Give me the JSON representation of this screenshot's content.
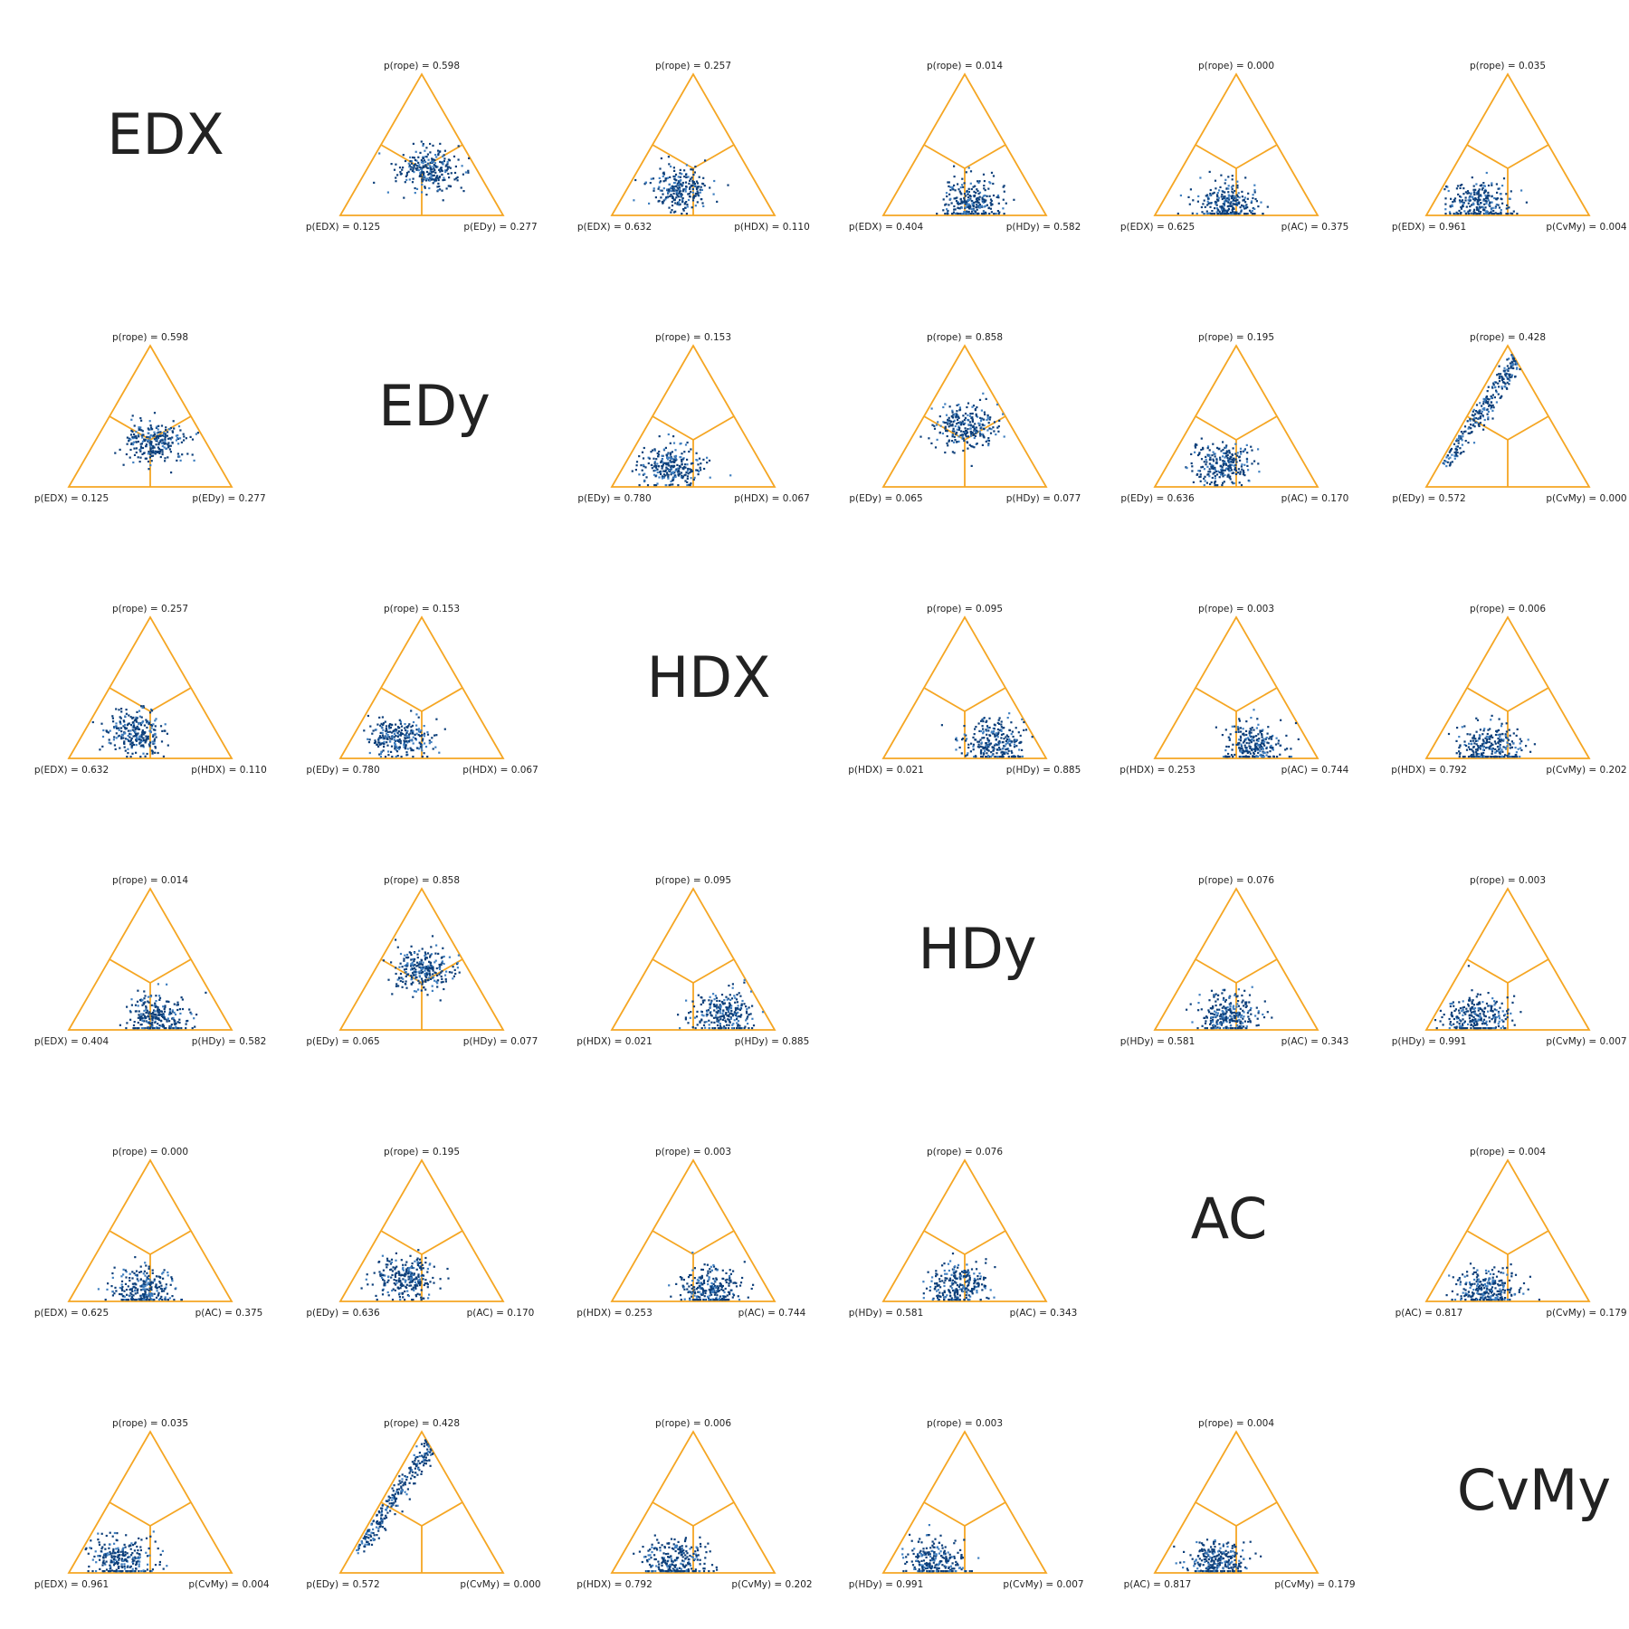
{
  "chart_data": {
    "type": "scatter",
    "subtype": "ternary-grid",
    "methods": [
      "EDX",
      "EDy",
      "HDX",
      "HDy",
      "AC",
      "CvMy"
    ],
    "colors": {
      "triangle": "#f5a623",
      "points": "#0d3f7a",
      "points_light": "#3f7fc0"
    },
    "panels": [
      {
        "row": 0,
        "col": 1,
        "top": "p(rope) = 0.598",
        "left": "p(EDX) = 0.125",
        "right": "p(EDy) = 0.277",
        "rope": 0.598,
        "pleft": 0.125,
        "pright": 0.277
      },
      {
        "row": 0,
        "col": 2,
        "top": "p(rope) = 0.257",
        "left": "p(EDX) = 0.632",
        "right": "p(HDX) = 0.110",
        "rope": 0.257,
        "pleft": 0.632,
        "pright": 0.11
      },
      {
        "row": 0,
        "col": 3,
        "top": "p(rope) = 0.014",
        "left": "p(EDX) = 0.404",
        "right": "p(HDy) = 0.582",
        "rope": 0.014,
        "pleft": 0.404,
        "pright": 0.582
      },
      {
        "row": 0,
        "col": 4,
        "top": "p(rope) = 0.000",
        "left": "p(EDX) = 0.625",
        "right": "p(AC) = 0.375",
        "rope": 0.0,
        "pleft": 0.625,
        "pright": 0.375
      },
      {
        "row": 0,
        "col": 5,
        "top": "p(rope) = 0.035",
        "left": "p(EDX) = 0.961",
        "right": "p(CvMy) = 0.004",
        "rope": 0.035,
        "pleft": 0.961,
        "pright": 0.004
      },
      {
        "row": 1,
        "col": 0,
        "top": "p(rope) = 0.598",
        "left": "p(EDX) = 0.125",
        "right": "p(EDy) = 0.277",
        "rope": 0.598,
        "pleft": 0.125,
        "pright": 0.277
      },
      {
        "row": 1,
        "col": 2,
        "top": "p(rope) = 0.153",
        "left": "p(EDy) = 0.780",
        "right": "p(HDX) = 0.067",
        "rope": 0.153,
        "pleft": 0.78,
        "pright": 0.067
      },
      {
        "row": 1,
        "col": 3,
        "top": "p(rope) = 0.858",
        "left": "p(EDy) = 0.065",
        "right": "p(HDy) = 0.077",
        "rope": 0.858,
        "pleft": 0.065,
        "pright": 0.077
      },
      {
        "row": 1,
        "col": 4,
        "top": "p(rope) = 0.195",
        "left": "p(EDy) = 0.636",
        "right": "p(AC) = 0.170",
        "rope": 0.195,
        "pleft": 0.636,
        "pright": 0.17
      },
      {
        "row": 1,
        "col": 5,
        "top": "p(rope) = 0.428",
        "left": "p(EDy) = 0.572",
        "right": "p(CvMy) = 0.000",
        "rope": 0.428,
        "pleft": 0.572,
        "pright": 0.0,
        "elongated": true
      },
      {
        "row": 2,
        "col": 0,
        "top": "p(rope) = 0.257",
        "left": "p(EDX) = 0.632",
        "right": "p(HDX) = 0.110",
        "rope": 0.257,
        "pleft": 0.632,
        "pright": 0.11
      },
      {
        "row": 2,
        "col": 1,
        "top": "p(rope) = 0.153",
        "left": "p(EDy) = 0.780",
        "right": "p(HDX) = 0.067",
        "rope": 0.153,
        "pleft": 0.78,
        "pright": 0.067
      },
      {
        "row": 2,
        "col": 3,
        "top": "p(rope) = 0.095",
        "left": "p(HDX) = 0.021",
        "right": "p(HDy) = 0.885",
        "rope": 0.095,
        "pleft": 0.021,
        "pright": 0.885
      },
      {
        "row": 2,
        "col": 4,
        "top": "p(rope) = 0.003",
        "left": "p(HDX) = 0.253",
        "right": "p(AC) = 0.744",
        "rope": 0.003,
        "pleft": 0.253,
        "pright": 0.744
      },
      {
        "row": 2,
        "col": 5,
        "top": "p(rope) = 0.006",
        "left": "p(HDX) = 0.792",
        "right": "p(CvMy) = 0.202",
        "rope": 0.006,
        "pleft": 0.792,
        "pright": 0.202
      },
      {
        "row": 3,
        "col": 0,
        "top": "p(rope) = 0.014",
        "left": "p(EDX) = 0.404",
        "right": "p(HDy) = 0.582",
        "rope": 0.014,
        "pleft": 0.404,
        "pright": 0.582
      },
      {
        "row": 3,
        "col": 1,
        "top": "p(rope) = 0.858",
        "left": "p(EDy) = 0.065",
        "right": "p(HDy) = 0.077",
        "rope": 0.858,
        "pleft": 0.065,
        "pright": 0.077
      },
      {
        "row": 3,
        "col": 2,
        "top": "p(rope) = 0.095",
        "left": "p(HDX) = 0.021",
        "right": "p(HDy) = 0.885",
        "rope": 0.095,
        "pleft": 0.021,
        "pright": 0.885
      },
      {
        "row": 3,
        "col": 4,
        "top": "p(rope) = 0.076",
        "left": "p(HDy) = 0.581",
        "right": "p(AC) = 0.343",
        "rope": 0.076,
        "pleft": 0.581,
        "pright": 0.343
      },
      {
        "row": 3,
        "col": 5,
        "top": "p(rope) = 0.003",
        "left": "p(HDy) = 0.991",
        "right": "p(CvMy) = 0.007",
        "rope": 0.003,
        "pleft": 0.991,
        "pright": 0.007
      },
      {
        "row": 4,
        "col": 0,
        "top": "p(rope) = 0.000",
        "left": "p(EDX) = 0.625",
        "right": "p(AC) = 0.375",
        "rope": 0.0,
        "pleft": 0.625,
        "pright": 0.375
      },
      {
        "row": 4,
        "col": 1,
        "top": "p(rope) = 0.195",
        "left": "p(EDy) = 0.636",
        "right": "p(AC) = 0.170",
        "rope": 0.195,
        "pleft": 0.636,
        "pright": 0.17
      },
      {
        "row": 4,
        "col": 2,
        "top": "p(rope) = 0.003",
        "left": "p(HDX) = 0.253",
        "right": "p(AC) = 0.744",
        "rope": 0.003,
        "pleft": 0.253,
        "pright": 0.744
      },
      {
        "row": 4,
        "col": 3,
        "top": "p(rope) = 0.076",
        "left": "p(HDy) = 0.581",
        "right": "p(AC) = 0.343",
        "rope": 0.076,
        "pleft": 0.581,
        "pright": 0.343
      },
      {
        "row": 4,
        "col": 5,
        "top": "p(rope) = 0.004",
        "left": "p(AC) = 0.817",
        "right": "p(CvMy) = 0.179",
        "rope": 0.004,
        "pleft": 0.817,
        "pright": 0.179
      },
      {
        "row": 5,
        "col": 0,
        "top": "p(rope) = 0.035",
        "left": "p(EDX) = 0.961",
        "right": "p(CvMy) = 0.004",
        "rope": 0.035,
        "pleft": 0.961,
        "pright": 0.004
      },
      {
        "row": 5,
        "col": 1,
        "top": "p(rope) = 0.428",
        "left": "p(EDy) = 0.572",
        "right": "p(CvMy) = 0.000",
        "rope": 0.428,
        "pleft": 0.572,
        "pright": 0.0,
        "elongated": true
      },
      {
        "row": 5,
        "col": 2,
        "top": "p(rope) = 0.006",
        "left": "p(HDX) = 0.792",
        "right": "p(CvMy) = 0.202",
        "rope": 0.006,
        "pleft": 0.792,
        "pright": 0.202
      },
      {
        "row": 5,
        "col": 3,
        "top": "p(rope) = 0.003",
        "left": "p(HDy) = 0.991",
        "right": "p(CvMy) = 0.007",
        "rope": 0.003,
        "pleft": 0.991,
        "pright": 0.007
      },
      {
        "row": 5,
        "col": 4,
        "top": "p(rope) = 0.004",
        "left": "p(AC) = 0.817",
        "right": "p(CvMy) = 0.179",
        "rope": 0.004,
        "pleft": 0.817,
        "pright": 0.179
      }
    ]
  }
}
